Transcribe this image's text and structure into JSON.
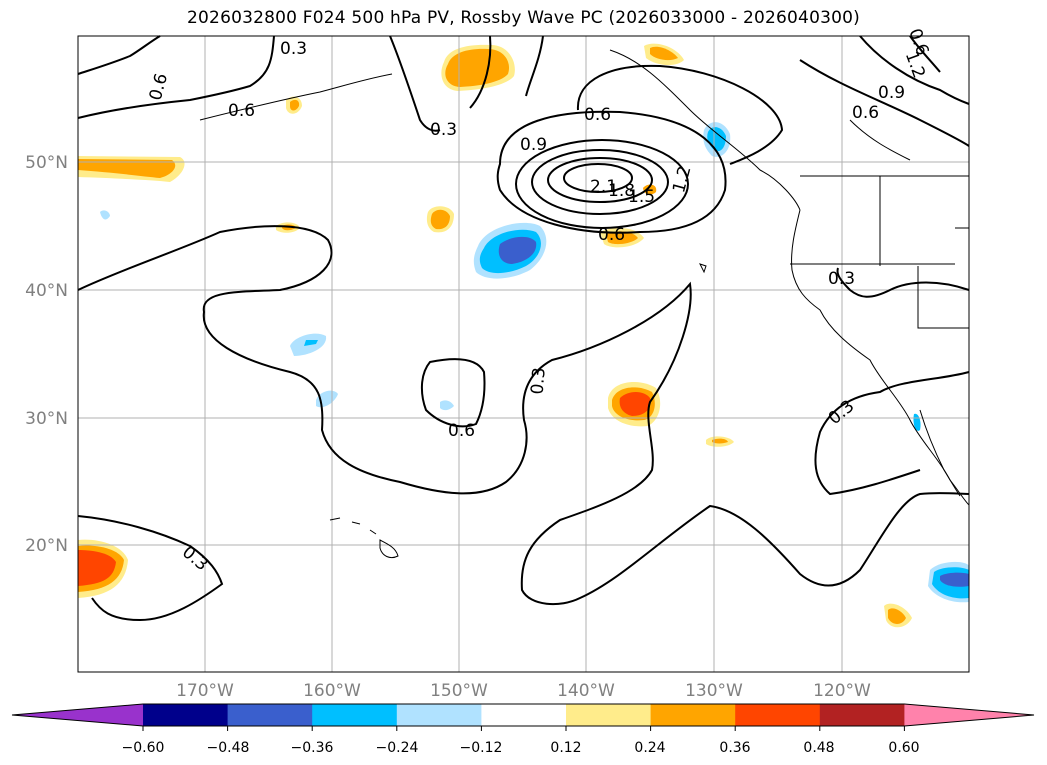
{
  "title": "2026032800 F024 500 hPa PV, Rossby Wave PC (2026033000 - 2026040300)",
  "lat_labels": [
    "50°N",
    "40°N",
    "30°N",
    "20°N"
  ],
  "lon_labels": [
    "170°W",
    "160°W",
    "150°W",
    "140°W",
    "130°W",
    "120°W"
  ],
  "pv_contour_labels": [
    "0.3",
    "0.3",
    "0.6",
    "0.6",
    "0.6",
    "0.3",
    "0.6",
    "0.9",
    "1.2",
    "0.9",
    "0.6",
    "1.2",
    "1.5",
    "1.8",
    "2.1",
    "0.6",
    "0.3",
    "0.3",
    "0.6",
    "0.3",
    "0.3"
  ],
  "colorbar": {
    "ticks": [
      "−0.60",
      "−0.48",
      "−0.36",
      "−0.24",
      "−0.12",
      "0.12",
      "0.24",
      "0.36",
      "0.48",
      "0.60"
    ],
    "colors": [
      "#9932cc",
      "#00008b",
      "#3a5fcd",
      "#00bfff",
      "#b0e2ff",
      "#ffffff",
      "#ffec8b",
      "#ffa500",
      "#ff4500",
      "#b22222",
      "#ff82ab"
    ]
  }
}
